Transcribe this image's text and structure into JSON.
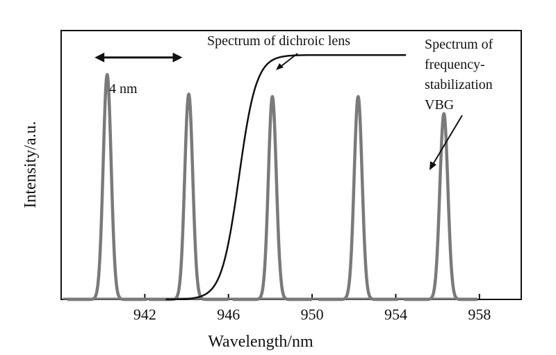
{
  "chart_data": {
    "type": "line",
    "title": "",
    "xlabel": "Wavelength/nm",
    "ylabel": "Intensity/a.u.",
    "xlim": [
      938,
      960
    ],
    "ylim": [
      0,
      1.1
    ],
    "x_ticks": [
      942,
      946,
      950,
      954,
      958
    ],
    "y_ticks": [],
    "grid": false,
    "series": [
      {
        "name": "Spectrum of frequency-stabilization VBG",
        "color": "#7a7a7a",
        "peaks": [
          {
            "center": 940.2,
            "height": 0.92
          },
          {
            "center": 944.1,
            "height": 0.84
          },
          {
            "center": 948.1,
            "height": 0.83
          },
          {
            "center": 952.2,
            "height": 0.83
          },
          {
            "center": 956.3,
            "height": 0.76
          }
        ],
        "peak_width_nm": 0.45,
        "x_start": 938.1,
        "x_end": 957.9
      },
      {
        "name": "Spectrum of dichroic lens",
        "color": "#111111",
        "type": "sigmoid",
        "x_start": 943.0,
        "x_end": 954.5,
        "midpoint": 946.5,
        "steepness": 2.4,
        "max": 1.0
      }
    ],
    "annotations": {
      "spacing_label": "4 nm",
      "spacing_from": 939.6,
      "spacing_to": 943.8,
      "spacing_level": 0.99,
      "dichroic_label": "Spectrum of dichroic lens",
      "vbg_label_lines": [
        "Spectrum of",
        "frequency-",
        "stabilization",
        "VBG"
      ]
    }
  }
}
